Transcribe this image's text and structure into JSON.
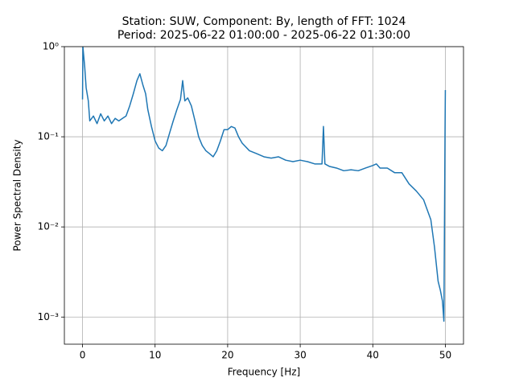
{
  "chart_data": {
    "type": "line",
    "title": [
      "Station: SUW, Component: By, length of FFT: 1024",
      "Period: 2025-06-22 01:00:00 - 2025-06-22 01:30:00"
    ],
    "xlabel": "Frequency [Hz]",
    "ylabel": "Power Spectral Density",
    "x": [
      0,
      0.05,
      0.3,
      0.5,
      0.8,
      1,
      1.5,
      2,
      2.5,
      3,
      3.5,
      4,
      4.5,
      5,
      5.5,
      6,
      6.5,
      7,
      7.5,
      7.9,
      8.3,
      8.7,
      9,
      9.5,
      10,
      10.5,
      11,
      11.5,
      12,
      12.5,
      13,
      13.5,
      13.8,
      14.1,
      14.5,
      15,
      15.5,
      16,
      16.5,
      17,
      17.5,
      18,
      18.5,
      19,
      19.5,
      20,
      20.5,
      21,
      21.5,
      22,
      23,
      24,
      25,
      26,
      27,
      28,
      29,
      30,
      31,
      32,
      33,
      33.2,
      33.4,
      34,
      35,
      36,
      37,
      38,
      39,
      40,
      40.5,
      41,
      42,
      43,
      44,
      45,
      46,
      47,
      48,
      48.5,
      49,
      49.3,
      49.6,
      49.8,
      49.95,
      50
    ],
    "series": [
      {
        "name": "PSD",
        "color": "#1f77b4",
        "values": [
          0.26,
          1.0,
          0.6,
          0.35,
          0.25,
          0.15,
          0.17,
          0.14,
          0.18,
          0.15,
          0.17,
          0.14,
          0.16,
          0.15,
          0.16,
          0.17,
          0.22,
          0.3,
          0.42,
          0.5,
          0.38,
          0.3,
          0.2,
          0.13,
          0.09,
          0.075,
          0.07,
          0.08,
          0.11,
          0.15,
          0.2,
          0.26,
          0.42,
          0.25,
          0.27,
          0.22,
          0.15,
          0.1,
          0.08,
          0.07,
          0.065,
          0.06,
          0.07,
          0.09,
          0.12,
          0.12,
          0.13,
          0.125,
          0.1,
          0.085,
          0.07,
          0.065,
          0.06,
          0.058,
          0.06,
          0.055,
          0.053,
          0.055,
          0.053,
          0.05,
          0.05,
          0.13,
          0.05,
          0.047,
          0.045,
          0.042,
          0.043,
          0.042,
          0.045,
          0.048,
          0.05,
          0.045,
          0.045,
          0.04,
          0.04,
          0.03,
          0.025,
          0.02,
          0.012,
          0.006,
          0.0025,
          0.002,
          0.0015,
          0.0009,
          0.1,
          0.33
        ]
      }
    ],
    "xlim": [
      -2.5,
      52.5
    ],
    "xticks": [
      0,
      10,
      20,
      30,
      40,
      50
    ],
    "ylim": [
      0.0005,
      1
    ],
    "ylog": true,
    "yticks": [
      {
        "value": 0.001,
        "label": "10⁻³"
      },
      {
        "value": 0.01,
        "label": "10⁻²"
      },
      {
        "value": 0.1,
        "label": "10⁻¹"
      },
      {
        "value": 1,
        "label": "10⁰"
      }
    ],
    "grid": true
  }
}
